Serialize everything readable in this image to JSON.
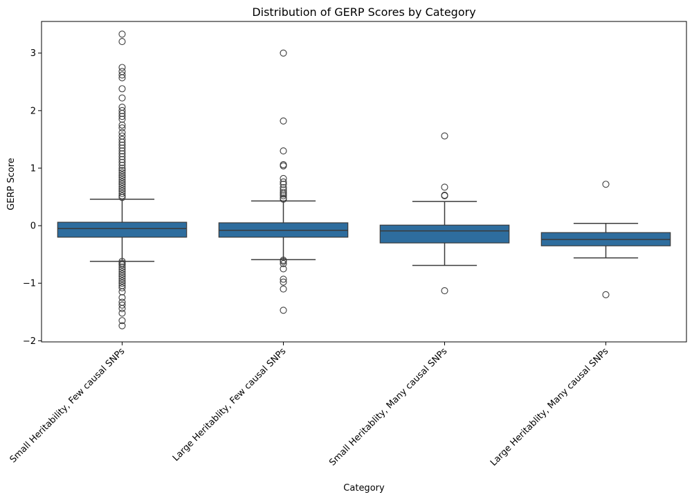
{
  "chart_data": {
    "type": "box",
    "title": "Distribution of GERP Scores by Category",
    "xlabel": "Category",
    "ylabel": "GERP Score",
    "ylim": [
      -2.02,
      3.55
    ],
    "yticks": [
      -2,
      -1,
      0,
      1,
      2,
      3
    ],
    "ytick_labels": [
      "−2",
      "−1",
      "0",
      "1",
      "2",
      "3"
    ],
    "grid": false,
    "box_color": "#2e6d9e",
    "edge_color": "#3a3a3a",
    "categories": [
      "Small Heritability, Few causal SNPs",
      "Large Heritablity, Few causal SNPs",
      "Small Heritablity, Many causal SNPs",
      "Large Heritablity, Many causal SNPs"
    ],
    "boxes": [
      {
        "whisker_low": -0.62,
        "q1": -0.2,
        "median": -0.05,
        "q3": 0.06,
        "whisker_high": 0.46,
        "outliers": [
          3.33,
          3.2,
          2.75,
          2.68,
          2.62,
          2.57,
          2.38,
          2.22,
          2.06,
          2.0,
          1.95,
          1.9,
          1.85,
          1.75,
          1.7,
          1.62,
          1.56,
          1.5,
          1.45,
          1.4,
          1.35,
          1.3,
          1.25,
          1.2,
          1.15,
          1.1,
          1.05,
          1.0,
          0.96,
          0.92,
          0.88,
          0.84,
          0.8,
          0.76,
          0.72,
          0.68,
          0.64,
          0.6,
          0.56,
          0.52,
          0.49,
          -0.62,
          -0.65,
          -0.68,
          -0.72,
          -0.76,
          -0.8,
          -0.84,
          -0.88,
          -0.92,
          -0.96,
          -1.0,
          -1.04,
          -1.08,
          -1.15,
          -1.25,
          -1.33,
          -1.38,
          -1.44,
          -1.52,
          -1.65,
          -1.74
        ]
      },
      {
        "whisker_low": -0.59,
        "q1": -0.2,
        "median": -0.08,
        "q3": 0.05,
        "whisker_high": 0.43,
        "outliers": [
          3.0,
          1.82,
          1.3,
          1.06,
          1.04,
          0.82,
          0.76,
          0.72,
          0.66,
          0.62,
          0.58,
          0.55,
          0.52,
          0.48,
          0.46,
          -0.6,
          -0.62,
          -0.66,
          -0.75,
          -0.93,
          -0.98,
          -1.1,
          -1.47
        ]
      },
      {
        "whisker_low": -0.69,
        "q1": -0.3,
        "median": -0.09,
        "q3": 0.01,
        "whisker_high": 0.42,
        "outliers": [
          1.56,
          0.67,
          0.53,
          0.52,
          -1.13
        ]
      },
      {
        "whisker_low": -0.56,
        "q1": -0.35,
        "median": -0.24,
        "q3": -0.12,
        "whisker_high": 0.04,
        "outliers": [
          0.72,
          -1.2
        ]
      }
    ]
  }
}
